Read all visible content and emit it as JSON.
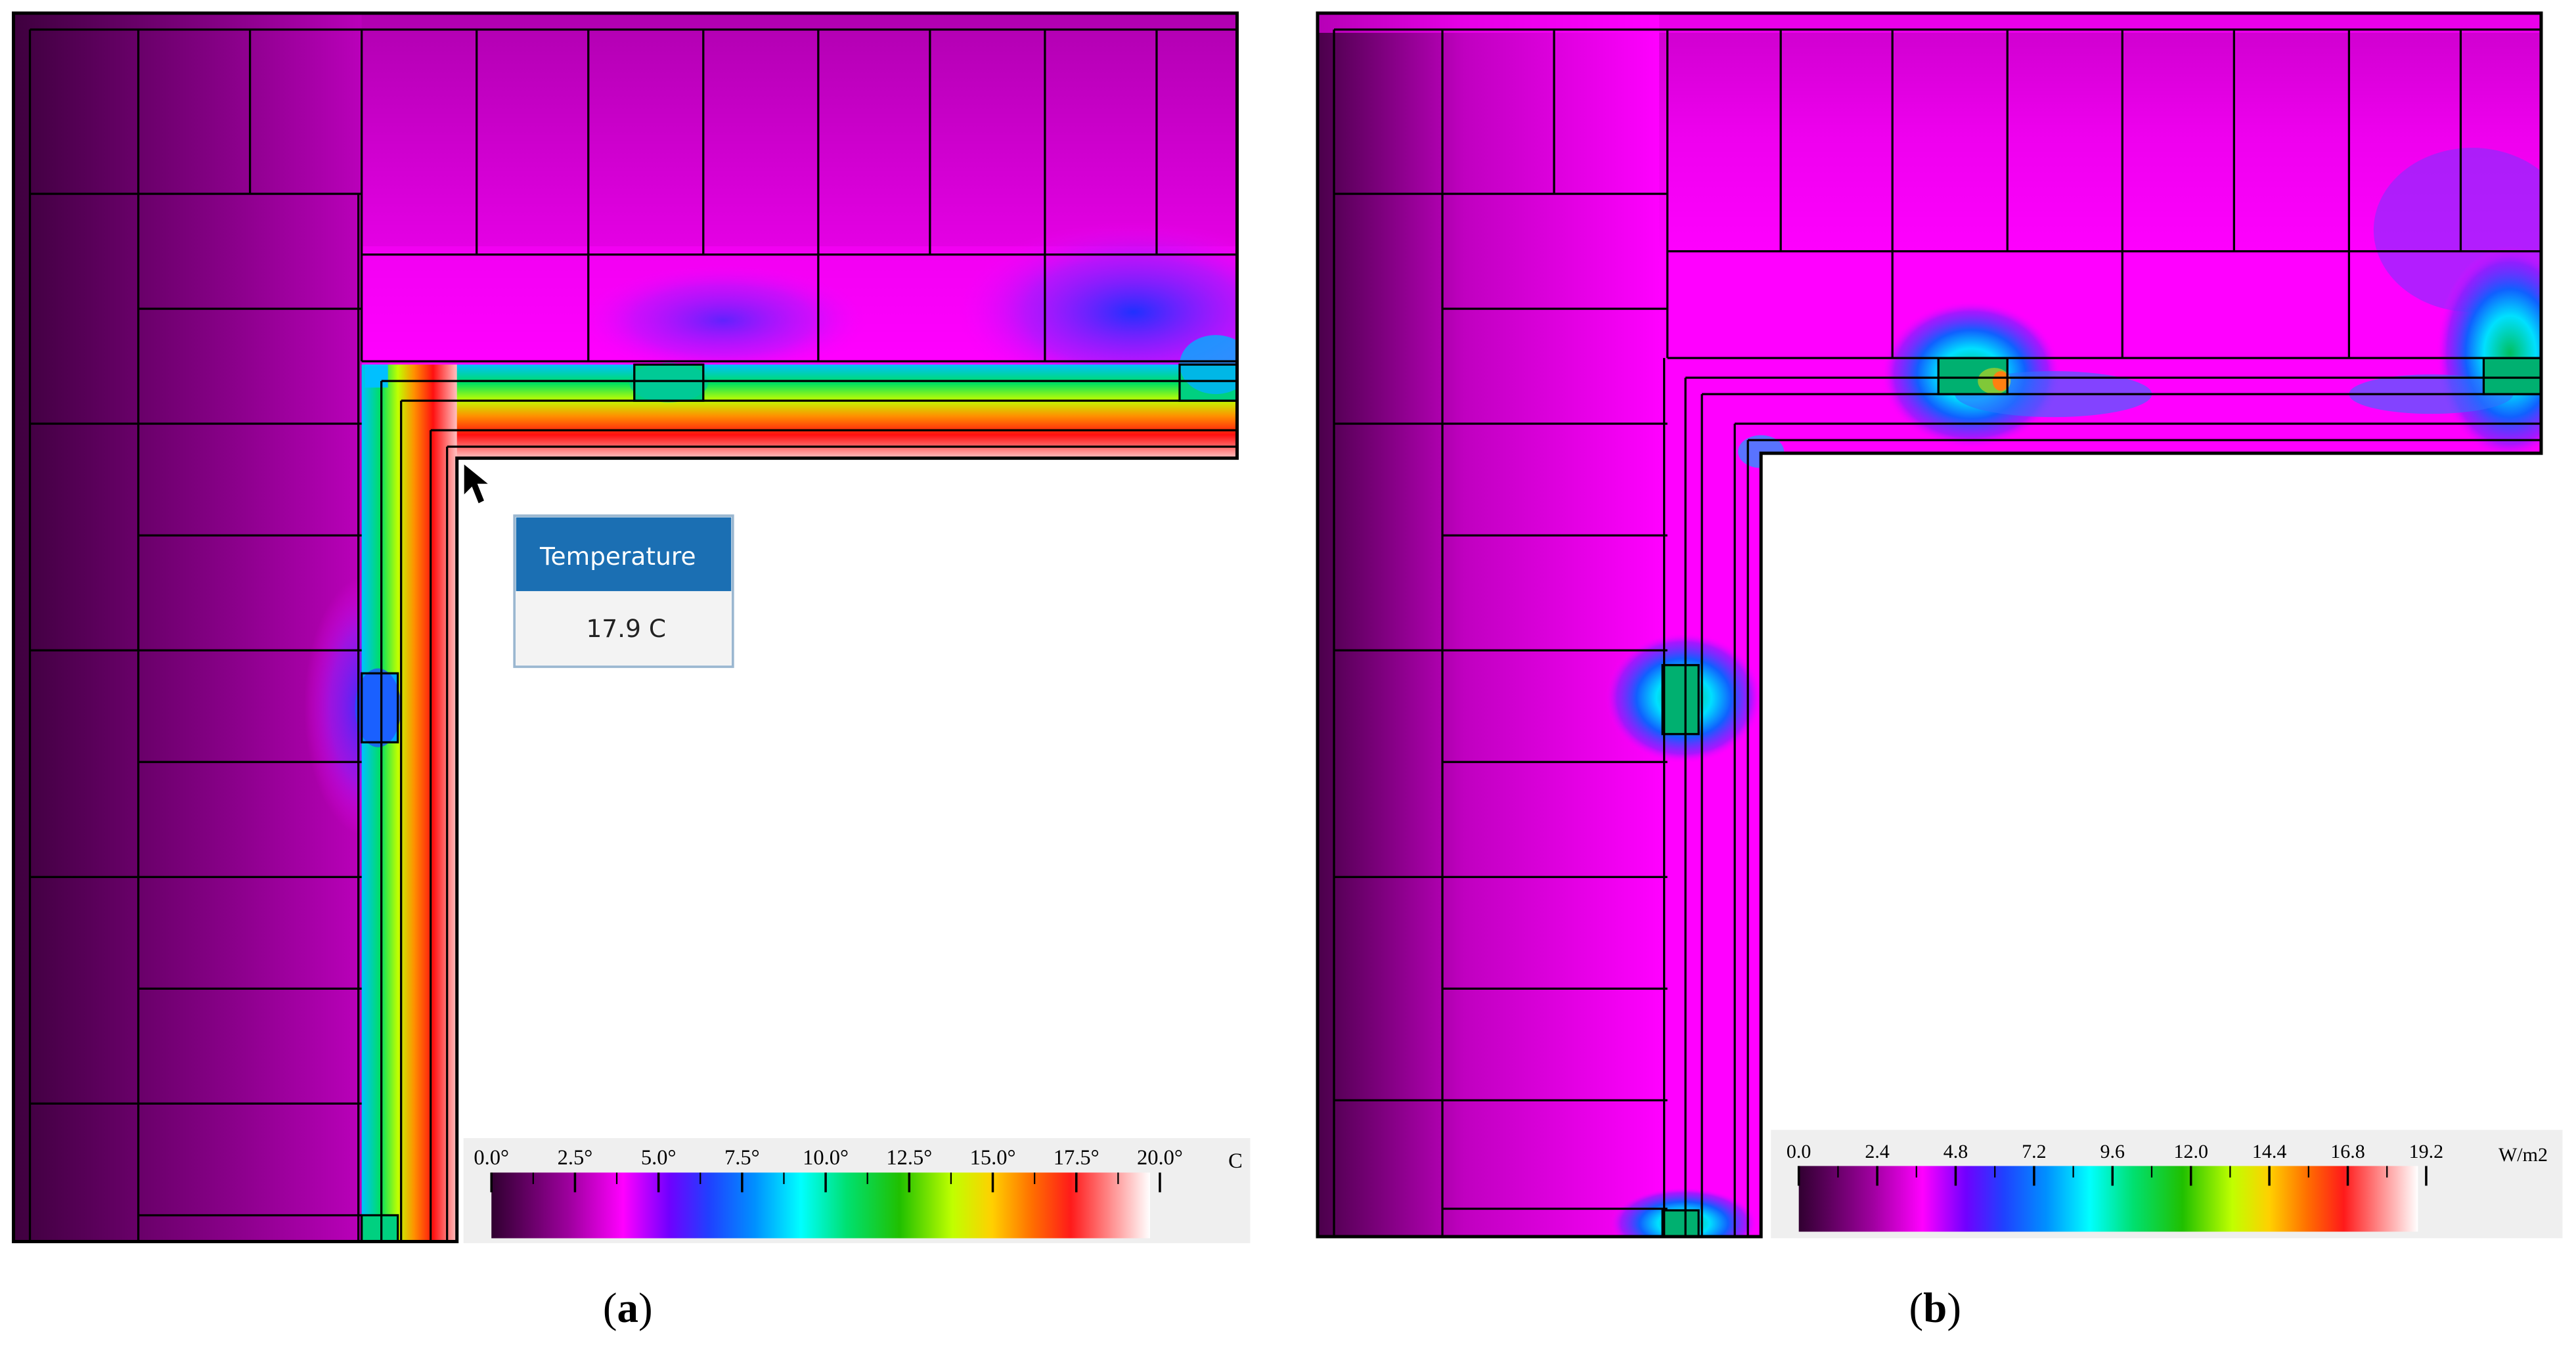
{
  "panel_a": {
    "caption_open": "(",
    "caption_letter": "a",
    "caption_close": ")",
    "tooltip": {
      "title": "Temperature",
      "value": "17.9 C"
    },
    "legend": {
      "tick_labels": [
        "0.0°",
        "2.5°",
        "5.0°",
        "7.5°",
        "10.0°",
        "12.5°",
        "15.0°",
        "17.5°",
        "20.0°"
      ],
      "unit": "C",
      "range": [
        0.0,
        20.0
      ]
    }
  },
  "panel_b": {
    "caption_open": "(",
    "caption_letter": "b",
    "caption_close": ")",
    "legend": {
      "tick_labels": [
        "0.0",
        "2.4",
        "4.8",
        "7.2",
        "9.6",
        "12.0",
        "14.4",
        "16.8",
        "19.2"
      ],
      "unit": "W/m2",
      "range": [
        0.0,
        19.2
      ]
    }
  },
  "colors": {
    "scale": [
      "#300030",
      "#7a007a",
      "#cc00cc",
      "#ff00ff",
      "#4040ff",
      "#0090ff",
      "#00ffff",
      "#00dd40",
      "#30c000",
      "#ffff00",
      "#ff8000",
      "#ff1a1a",
      "#ffffff"
    ],
    "outline": "#000000",
    "legend_bg": "#efefef",
    "tooltip_header": "#1b6fb3"
  },
  "icons": {
    "cursor": "mouse-pointer-icon"
  }
}
